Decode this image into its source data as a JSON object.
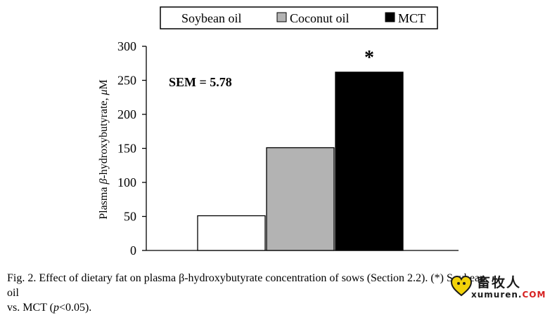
{
  "chart_data": {
    "type": "bar",
    "title": "",
    "ylabel_prefix": "Plasma ",
    "ylabel_greek": "β",
    "ylabel_mid": "-hydroxybutyrate, ",
    "ylabel_unit_greek": "μ",
    "ylabel_unit": "M",
    "xlabel": "",
    "ylim": [
      0,
      300
    ],
    "yticks": [
      "0",
      "50",
      "100",
      "150",
      "200",
      "250",
      "300"
    ],
    "ytick_values": [
      0,
      50,
      100,
      150,
      200,
      250,
      300
    ],
    "categories": [
      "Soybean oil",
      "Coconut oil",
      "MCT"
    ],
    "values": [
      51,
      151,
      262
    ],
    "bar_colors": [
      "#ffffff",
      "#b3b3b3",
      "#000000"
    ],
    "legend": {
      "placement": "top",
      "entries": [
        "Soybean oil",
        "Coconut oil",
        "MCT"
      ]
    },
    "annotations": {
      "sem": "SEM = 5.78",
      "significance_marker": "*"
    },
    "grid": false
  },
  "caption": {
    "part1": "Fig. 2.  Effect of dietary fat on plasma β-hydroxybutyrate concentration of sows (Section 2.2). (*) Soybean oil",
    "part2": "vs. MCT (",
    "p_italic": "p",
    "part3": "<0.05)."
  },
  "watermark": {
    "text": "畜牧人",
    "site_main": "xumuren.",
    "site_tld": "COM",
    "accent_color": "#f2d20a"
  }
}
